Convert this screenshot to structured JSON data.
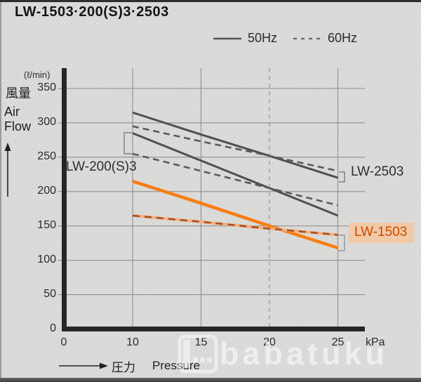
{
  "title": "LW-1503·200(S)3·2503",
  "legend": {
    "items": [
      {
        "label": "50Hz",
        "style": "solid"
      },
      {
        "label": "60Hz",
        "style": "dashed"
      }
    ]
  },
  "watermark": {
    "text": "babatuku"
  },
  "colors": {
    "line_gray": "#4f4f4f",
    "line_gray_dashed": "#5a5a5a",
    "line_orange": "#f87d12",
    "line_orange_dash": "#a8511f",
    "line_orange_underlay": "#f2b183",
    "lw1503_box_bg": "#f2c9a6",
    "lw1503_text": "#c84b00"
  },
  "chart_data": {
    "type": "line",
    "title": "LW-1503·200(S)3·2503 performance curves",
    "x": [
      10,
      15,
      20,
      25
    ],
    "x_axis": {
      "ticks": [
        0,
        10,
        15,
        20,
        25
      ],
      "dashed_gridline_at": 20,
      "unit": "kPa",
      "label_ja": "圧力",
      "label_en": "Pressure"
    },
    "y_axis": {
      "ticks": [
        350,
        300,
        250,
        200,
        150,
        100,
        50,
        0
      ],
      "unit": "(ℓ/min)",
      "label_ja": "風量",
      "label_en": "Air Flow",
      "range": [
        0,
        350
      ]
    },
    "series": [
      {
        "model": "LW-2503",
        "freq": "50Hz",
        "style": "solid",
        "color": "#4f4f4f",
        "values": [
          315,
          283,
          252,
          220
        ]
      },
      {
        "model": "LW-2503",
        "freq": "60Hz",
        "style": "dashed",
        "color": "#5a5a5a",
        "values": [
          295,
          273,
          252,
          230
        ]
      },
      {
        "model": "LW-200(S)3",
        "freq": "50Hz",
        "style": "solid",
        "color": "#4f4f4f",
        "values": [
          285,
          245,
          205,
          165
        ]
      },
      {
        "model": "LW-200(S)3",
        "freq": "60Hz",
        "style": "dashed",
        "color": "#5a5a5a",
        "values": [
          255,
          230,
          205,
          180
        ]
      },
      {
        "model": "LW-1503",
        "freq": "50Hz",
        "style": "solid",
        "color": "#f87d12",
        "emphasized": true,
        "values": [
          215,
          183,
          150,
          118
        ]
      },
      {
        "model": "LW-1503",
        "freq": "60Hz",
        "style": "dashed",
        "color": "#a8511f",
        "underlay_color": "#f2b183",
        "values": [
          165,
          156,
          146,
          137
        ]
      }
    ],
    "annotations": {
      "left_label": "LW-200(S)3",
      "right_top_label": "LW-2503",
      "right_bottom_label": "LW-1503"
    },
    "legend_position": "top-right",
    "grid": true
  }
}
